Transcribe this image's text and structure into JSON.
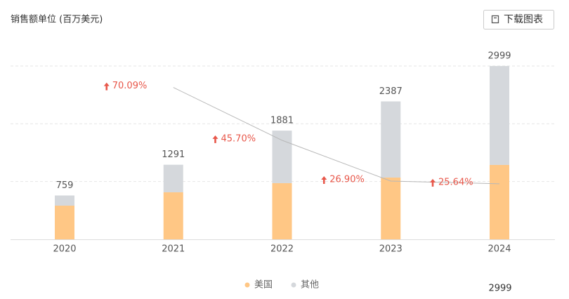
{
  "chart_data": {
    "type": "bar",
    "stacked": true,
    "title": "销售额单位 (百万美元)",
    "button": "下载图表",
    "categories": [
      "2020",
      "2021",
      "2022",
      "2023",
      "2024"
    ],
    "series": [
      {
        "name": "美国",
        "color": "#ffc785",
        "values": [
          583,
          814,
          972,
          1069,
          1288
        ]
      },
      {
        "name": "其他",
        "color": "#d5d8dc",
        "values": [
          176,
          477,
          909,
          1318,
          1711
        ]
      },
      {
        "type": "line",
        "axis": "y2",
        "color": "#b8b8b8",
        "label_color": "#e8574a",
        "values": [
          null,
          70.09,
          45.7,
          26.9,
          25.64
        ],
        "value_labels": [
          null,
          "70.09%",
          "45.70%",
          "26.90%",
          "25.64%"
        ]
      }
    ],
    "totals": [
      759,
      1291,
      1881,
      2387,
      2999
    ],
    "ylim": [
      0,
      3000
    ],
    "yticks": [
      1000,
      2000,
      3000
    ],
    "y2lim": [
      0,
      80
    ],
    "grid": true,
    "legend": "bottom",
    "footer_text": "2999"
  }
}
